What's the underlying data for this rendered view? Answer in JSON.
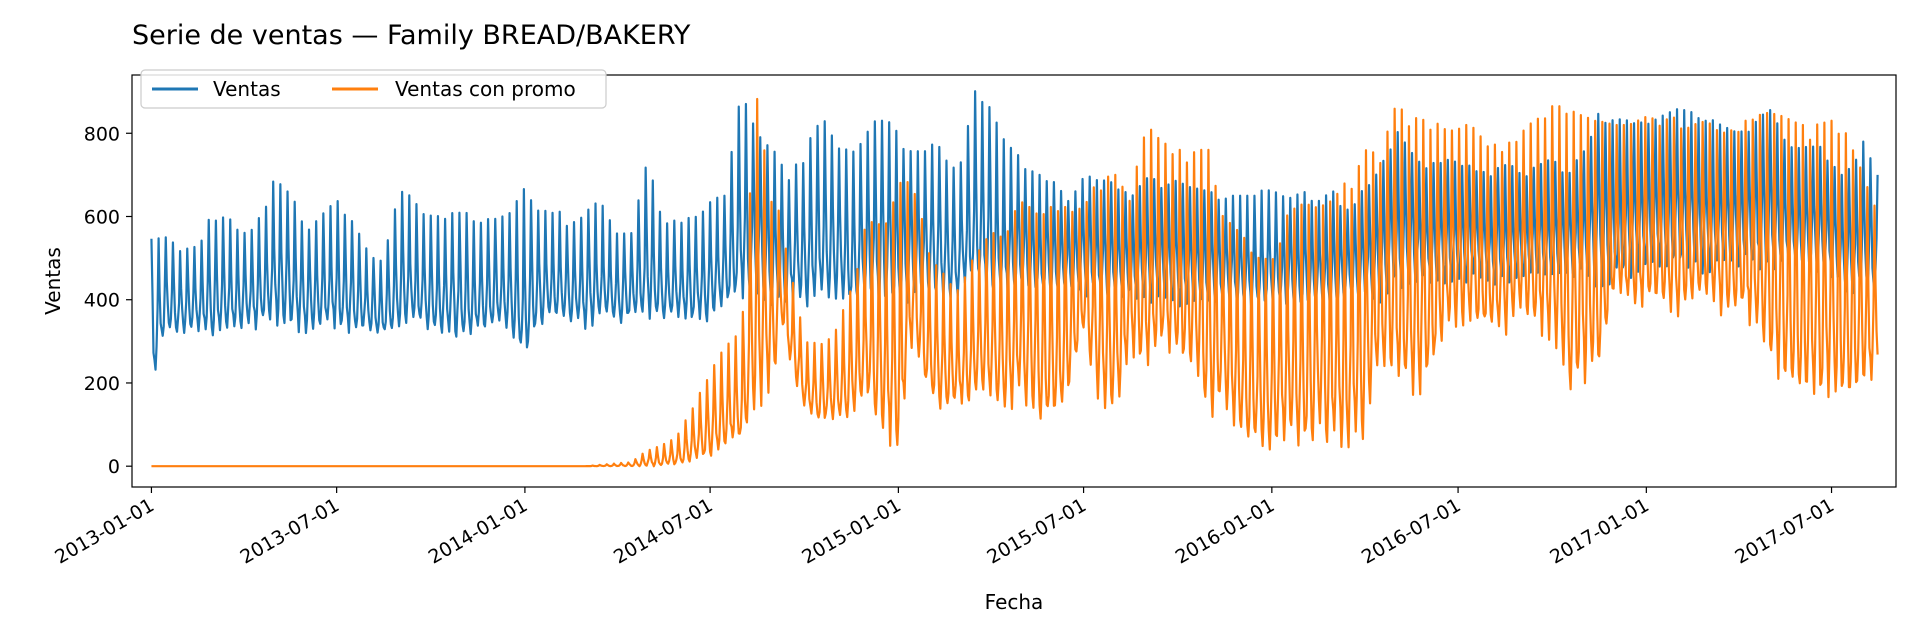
{
  "chart_data": {
    "type": "line",
    "title": "Serie de ventas — Family BREAD/BAKERY",
    "xlabel": "Fecha",
    "ylabel": "Ventas",
    "xlim": [
      "2012-12-13",
      "2017-09-02"
    ],
    "ylim": [
      -50,
      940
    ],
    "yticks": [
      0,
      200,
      400,
      600,
      800
    ],
    "xticks": [
      "2013-01-01",
      "2013-07-01",
      "2014-01-01",
      "2014-07-01",
      "2015-01-01",
      "2015-07-01",
      "2016-01-01",
      "2016-07-01",
      "2017-01-01",
      "2017-07-01"
    ],
    "grid": false,
    "legend": {
      "placement": "top-left",
      "columns": 2
    },
    "series": [
      {
        "name": "Ventas",
        "color": "#1f77b4",
        "x": [
          "2013-01-01",
          "2013-01-15",
          "2013-02-01",
          "2013-02-15",
          "2013-03-01",
          "2013-03-15",
          "2013-04-01",
          "2013-04-15",
          "2013-05-01",
          "2013-05-15",
          "2013-06-01",
          "2013-06-15",
          "2013-07-01",
          "2013-07-15",
          "2013-08-01",
          "2013-08-15",
          "2013-09-01",
          "2013-09-15",
          "2013-10-01",
          "2013-10-15",
          "2013-11-01",
          "2013-11-15",
          "2013-12-01",
          "2013-12-15",
          "2014-01-01",
          "2014-01-15",
          "2014-02-01",
          "2014-02-15",
          "2014-03-01",
          "2014-03-15",
          "2014-04-01",
          "2014-04-15",
          "2014-05-01",
          "2014-05-15",
          "2014-06-01",
          "2014-06-15",
          "2014-07-01",
          "2014-07-15",
          "2014-08-01",
          "2014-08-15",
          "2014-09-01",
          "2014-09-15",
          "2014-10-01",
          "2014-10-15",
          "2014-11-01",
          "2014-11-15",
          "2014-12-01",
          "2014-12-15",
          "2015-01-01",
          "2015-01-15",
          "2015-02-01",
          "2015-02-15",
          "2015-03-01",
          "2015-03-15",
          "2015-04-01",
          "2015-04-15",
          "2015-05-01",
          "2015-05-15",
          "2015-06-01",
          "2015-06-15",
          "2015-07-01",
          "2015-07-15",
          "2015-08-01",
          "2015-08-15",
          "2015-09-01",
          "2015-09-15",
          "2015-10-01",
          "2015-10-15",
          "2015-11-01",
          "2015-11-15",
          "2015-12-01",
          "2015-12-15",
          "2016-01-01",
          "2016-01-15",
          "2016-02-01",
          "2016-02-15",
          "2016-03-01",
          "2016-03-15",
          "2016-04-01",
          "2016-04-15",
          "2016-05-01",
          "2016-05-15",
          "2016-06-01",
          "2016-06-15",
          "2016-07-01",
          "2016-07-15",
          "2016-08-01",
          "2016-08-15",
          "2016-09-01",
          "2016-09-15",
          "2016-10-01",
          "2016-10-15",
          "2016-11-01",
          "2016-11-15",
          "2016-12-01",
          "2016-12-15",
          "2017-01-01",
          "2017-01-15",
          "2017-02-01",
          "2017-02-15",
          "2017-03-01",
          "2017-03-15",
          "2017-04-01",
          "2017-04-15",
          "2017-05-01",
          "2017-05-15",
          "2017-06-01",
          "2017-06-15",
          "2017-07-01",
          "2017-07-15",
          "2017-08-01",
          "2017-08-15"
        ],
        "low": [
          180,
          320,
          315,
          320,
          310,
          330,
          320,
          330,
          340,
          325,
          320,
          330,
          320,
          320,
          315,
          310,
          320,
          330,
          315,
          310,
          300,
          310,
          320,
          330,
          240,
          340,
          350,
          340,
          330,
          345,
          340,
          350,
          345,
          340,
          350,
          340,
          350,
          380,
          400,
          410,
          370,
          400,
          380,
          390,
          400,
          380,
          390,
          380,
          380,
          400,
          410,
          400,
          410,
          420,
          410,
          400,
          420,
          400,
          410,
          420,
          410,
          400,
          390,
          400,
          390,
          400,
          380,
          390,
          380,
          390,
          380,
          370,
          380,
          370,
          380,
          370,
          380,
          390,
          400,
          390,
          420,
          440,
          430,
          440,
          430,
          450,
          440,
          430,
          440,
          450,
          440,
          450,
          440,
          430,
          440,
          450,
          470,
          470,
          480,
          470,
          460,
          470,
          480,
          470,
          460,
          470,
          460,
          470,
          450,
          420,
          410,
          420
        ],
        "high": [
          570,
          550,
          520,
          530,
          610,
          600,
          570,
          590,
          690,
          680,
          560,
          600,
          640,
          600,
          520,
          490,
          670,
          640,
          610,
          600,
          620,
          580,
          600,
          600,
          670,
          610,
          620,
          580,
          610,
          640,
          560,
          560,
          740,
          590,
          590,
          610,
          640,
          650,
          910,
          800,
          760,
          700,
          750,
          850,
          790,
          750,
          800,
          850,
          800,
          750,
          780,
          760,
          700,
          910,
          860,
          780,
          740,
          700,
          700,
          640,
          700,
          690,
          680,
          650,
          700,
          680,
          700,
          670,
          660,
          650,
          650,
          650,
          680,
          640,
          660,
          640,
          660,
          620,
          670,
          720,
          810,
          760,
          720,
          740,
          730,
          720,
          700,
          740,
          700,
          720,
          740,
          700,
          760,
          860,
          830,
          840,
          820,
          840,
          860,
          850,
          840,
          820,
          800,
          820,
          860,
          800,
          760,
          780,
          740,
          700,
          780,
          700
        ]
      },
      {
        "name": "Ventas con promo",
        "color": "#ff7f0e",
        "x": [
          "2013-01-01",
          "2013-04-01",
          "2013-07-01",
          "2013-10-01",
          "2014-01-01",
          "2014-03-01",
          "2014-04-15",
          "2014-05-01",
          "2014-05-15",
          "2014-06-01",
          "2014-06-15",
          "2014-07-01",
          "2014-07-15",
          "2014-08-01",
          "2014-08-15",
          "2014-09-01",
          "2014-09-08",
          "2014-09-15",
          "2014-10-01",
          "2014-10-15",
          "2014-11-01",
          "2014-11-15",
          "2014-12-01",
          "2014-12-15",
          "2015-01-01",
          "2015-01-15",
          "2015-02-01",
          "2015-02-15",
          "2015-03-01",
          "2015-03-15",
          "2015-04-01",
          "2015-04-15",
          "2015-05-01",
          "2015-05-15",
          "2015-06-01",
          "2015-06-15",
          "2015-07-01",
          "2015-07-15",
          "2015-08-01",
          "2015-08-15",
          "2015-09-01",
          "2015-09-15",
          "2015-10-01",
          "2015-10-15",
          "2015-11-01",
          "2015-11-15",
          "2015-12-01",
          "2015-12-15",
          "2016-01-01",
          "2016-01-15",
          "2016-02-01",
          "2016-02-15",
          "2016-03-01",
          "2016-03-15",
          "2016-04-01",
          "2016-04-15",
          "2016-05-01",
          "2016-05-15",
          "2016-06-01",
          "2016-06-15",
          "2016-07-01",
          "2016-07-15",
          "2016-08-01",
          "2016-08-15",
          "2016-09-01",
          "2016-09-15",
          "2016-10-01",
          "2016-10-15",
          "2016-11-01",
          "2016-11-15",
          "2016-12-01",
          "2016-12-15",
          "2017-01-01",
          "2017-01-15",
          "2017-02-01",
          "2017-02-15",
          "2017-03-01",
          "2017-03-15",
          "2017-04-01",
          "2017-04-15",
          "2017-05-01",
          "2017-05-15",
          "2017-06-01",
          "2017-06-15",
          "2017-07-01",
          "2017-07-15",
          "2017-08-01",
          "2017-08-15"
        ],
        "low": [
          0,
          0,
          0,
          0,
          0,
          0,
          0,
          0,
          0,
          0,
          10,
          20,
          40,
          60,
          120,
          200,
          350,
          260,
          140,
          100,
          110,
          120,
          150,
          100,
          0,
          300,
          150,
          130,
          140,
          150,
          170,
          120,
          160,
          120,
          100,
          150,
          320,
          150,
          100,
          280,
          200,
          280,
          250,
          220,
          110,
          150,
          60,
          40,
          30,
          60,
          40,
          60,
          40,
          30,
          70,
          250,
          200,
          160,
          180,
          300,
          340,
          330,
          300,
          310,
          360,
          320,
          300,
          180,
          200,
          190,
          400,
          360,
          380,
          370,
          360,
          380,
          380,
          360,
          370,
          320,
          260,
          170,
          160,
          150,
          160,
          140,
          180,
          200
        ],
        "high": [
          0,
          0,
          0,
          0,
          0,
          0,
          10,
          40,
          50,
          80,
          150,
          220,
          300,
          330,
          900,
          600,
          620,
          500,
          310,
          300,
          330,
          420,
          590,
          580,
          680,
          700,
          500,
          460,
          420,
          500,
          560,
          560,
          660,
          620,
          640,
          620,
          620,
          690,
          700,
          650,
          820,
          780,
          760,
          760,
          760,
          600,
          560,
          520,
          500,
          600,
          640,
          620,
          640,
          690,
          760,
          750,
          870,
          840,
          830,
          820,
          820,
          820,
          780,
          760,
          820,
          830,
          870,
          860,
          840,
          830,
          820,
          820,
          840,
          830,
          840,
          820,
          830,
          800,
          820,
          840,
          850,
          840,
          820,
          820,
          830,
          800,
          700,
          620
        ]
      }
    ]
  }
}
